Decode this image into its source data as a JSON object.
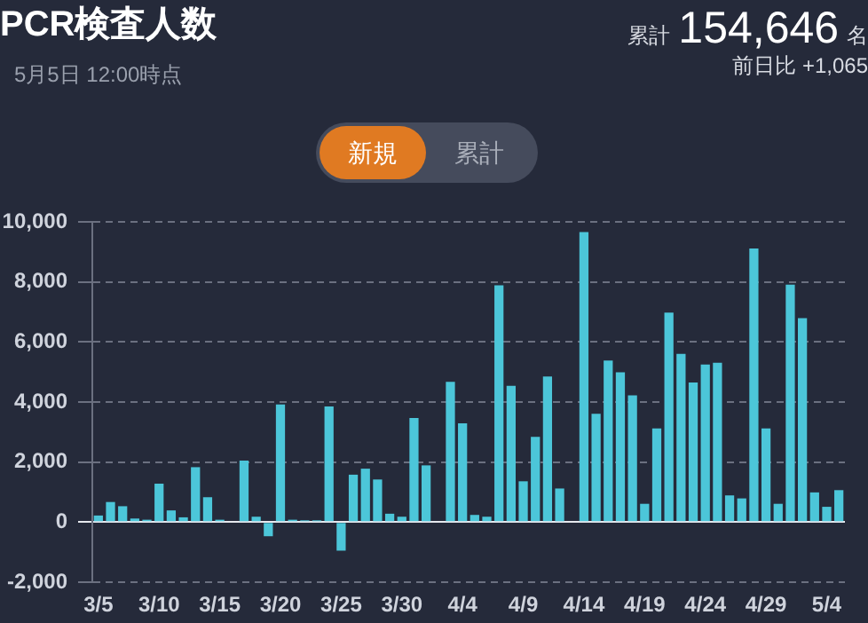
{
  "chart_data": {
    "type": "bar",
    "title": "PCR検査人数",
    "subtitle": "5月5日 12:00時点",
    "annotations": [
      "累計",
      "154,646",
      "名",
      "前日比 +1,065",
      "新規",
      "累計"
    ],
    "categories": [
      "3/5",
      null,
      null,
      null,
      null,
      "3/10",
      null,
      null,
      null,
      null,
      "3/15",
      null,
      null,
      null,
      null,
      "3/20",
      null,
      null,
      null,
      null,
      "3/25",
      null,
      null,
      null,
      null,
      "3/30",
      null,
      null,
      null,
      null,
      "4/4",
      null,
      null,
      null,
      null,
      "4/9",
      null,
      null,
      null,
      null,
      "4/14",
      null,
      null,
      null,
      null,
      "4/19",
      null,
      null,
      null,
      null,
      "4/24",
      null,
      null,
      null,
      null,
      "4/29",
      null,
      null,
      null,
      null,
      "5/4",
      null
    ],
    "values": [
      220,
      670,
      530,
      120,
      80,
      1280,
      390,
      160,
      1830,
      830,
      80,
      0,
      2050,
      180,
      -470,
      3920,
      80,
      60,
      60,
      3850,
      -950,
      1580,
      1780,
      1420,
      280,
      180,
      3470,
      1890,
      0,
      4670,
      3290,
      240,
      180,
      7890,
      4540,
      1360,
      2840,
      4850,
      1120,
      0,
      9660,
      3610,
      5380,
      4990,
      4220,
      610,
      3120,
      6980,
      5600,
      4650,
      5250,
      5310,
      890,
      790,
      9110,
      3120,
      610,
      7910,
      6790,
      990,
      510,
      1065
    ],
    "color": "#4cc6d9",
    "ylim": [
      -2000,
      10000
    ],
    "yticks": [
      {
        "value": -2000,
        "label": "-2,000"
      },
      0,
      {
        "value": 2000,
        "label": "2,000"
      },
      {
        "value": 4000,
        "label": "4,000"
      },
      {
        "value": 6000,
        "label": "6,000"
      },
      {
        "value": 8000,
        "label": "8,000"
      },
      {
        "value": 10000,
        "label": "10,000"
      }
    ],
    "grid": "y"
  }
}
